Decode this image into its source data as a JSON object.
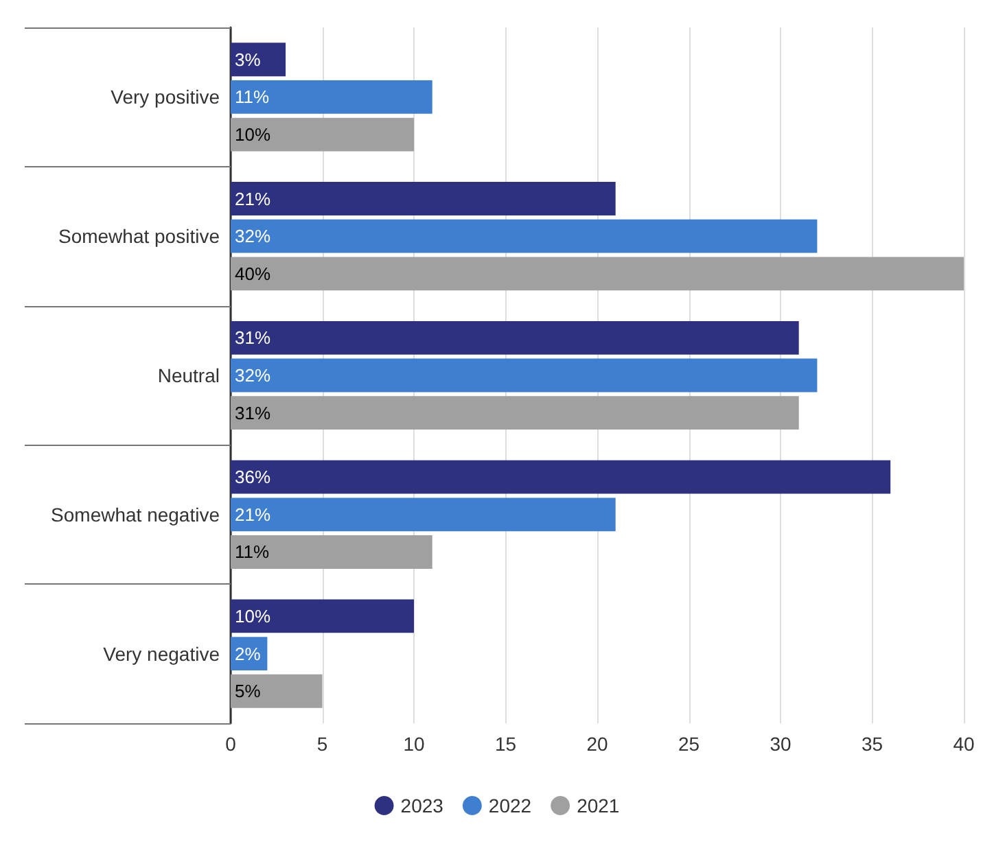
{
  "chart_data": {
    "type": "bar",
    "orientation": "horizontal",
    "categories": [
      "Very positive",
      "Somewhat positive",
      "Neutral",
      "Somewhat negative",
      "Very negative"
    ],
    "series": [
      {
        "name": "2023",
        "color": "#2e3180",
        "values": [
          3,
          21,
          31,
          36,
          10
        ],
        "value_labels": [
          "3%",
          "21%",
          "31%",
          "36%",
          "10%"
        ]
      },
      {
        "name": "2022",
        "color": "#3f7fd0",
        "values": [
          11,
          32,
          32,
          21,
          2
        ],
        "value_labels": [
          "11%",
          "32%",
          "32%",
          "21%",
          "2%"
        ]
      },
      {
        "name": "2021",
        "color": "#a0a0a0",
        "values": [
          10,
          40,
          31,
          11,
          5
        ],
        "value_labels": [
          "10%",
          "40%",
          "31%",
          "11%",
          "5%"
        ]
      }
    ],
    "xlim": [
      0,
      40
    ],
    "xticks": [
      0,
      5,
      10,
      15,
      20,
      25,
      30,
      35,
      40
    ],
    "grid": "x",
    "legend": "bottom"
  }
}
